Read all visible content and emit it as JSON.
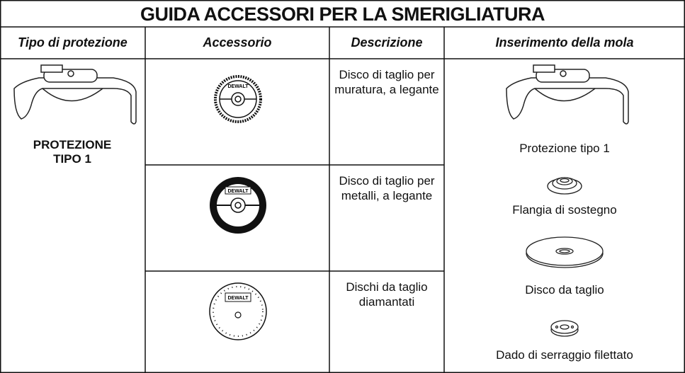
{
  "title": "GUIDA ACCESSORI PER LA SMERIGLIATURA",
  "headers": [
    "Tipo di protezione",
    "Accessorio",
    "Descrizione",
    "Inserimento della mola"
  ],
  "guard": {
    "label": "PROTEZIONE TIPO 1"
  },
  "rows": [
    {
      "logo": "DEWALT",
      "description": "Disco di taglio per muratura, a legante"
    },
    {
      "logo": "DEWALT",
      "description": "Disco di taglio per metalli, a legante"
    },
    {
      "logo": "DEWALT",
      "description": "Dischi da taglio diamantati"
    }
  ],
  "assembly": [
    "Protezione tipo 1",
    "Flangia di sostegno",
    "Disco da taglio",
    "Dado di serraggio filettato"
  ]
}
